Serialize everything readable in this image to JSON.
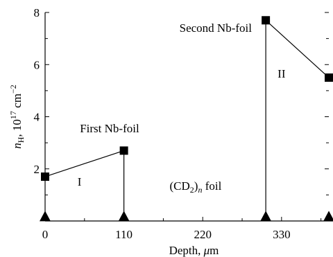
{
  "chart_data": {
    "type": "scatter",
    "xlabel": "Depth, μm",
    "ylabel": "n_H, 10^17 cm^-2",
    "xlim": [
      0,
      396
    ],
    "ylim": [
      0,
      8
    ],
    "x_ticks": [
      "0",
      "110",
      "220",
      "330"
    ],
    "x_tick_values": [
      0,
      110,
      220,
      330
    ],
    "y_ticks": [
      "2",
      "4",
      "6",
      "8"
    ],
    "y_tick_values": [
      2,
      4,
      6,
      8
    ],
    "series": [
      {
        "marker": "square",
        "points": [
          {
            "x": 0,
            "y": 1.7
          },
          {
            "x": 110,
            "y": 2.7
          },
          {
            "x": 308,
            "y": 7.7
          },
          {
            "x": 396,
            "y": 5.5
          }
        ],
        "segments": [
          [
            0,
            1
          ],
          [
            2,
            3
          ]
        ]
      },
      {
        "marker": "triangle",
        "points": [
          {
            "x": 0,
            "y": 0.15
          },
          {
            "x": 110,
            "y": 0.15
          },
          {
            "x": 308,
            "y": 0.15
          },
          {
            "x": 396,
            "y": 0.15
          }
        ]
      }
    ],
    "droplines": [
      {
        "x": 110,
        "y_from": 0.15,
        "y_to": 2.7
      },
      {
        "x": 308,
        "y_from": 0.15,
        "y_to": 7.7
      }
    ],
    "annotations": [
      {
        "text": "First Nb-foil",
        "x": 90,
        "y": 3.4
      },
      {
        "text": "I",
        "x": 48,
        "y": 1.35
      },
      {
        "text": "(CD2)n foil",
        "x": 210,
        "y": 1.2
      },
      {
        "text": "Second Nb-foil",
        "x": 238,
        "y": 7.25
      },
      {
        "text": "II",
        "x": 330,
        "y": 5.5
      }
    ],
    "grid": false,
    "colors": {
      "marks": "#000000",
      "background": "#ffffff"
    }
  }
}
